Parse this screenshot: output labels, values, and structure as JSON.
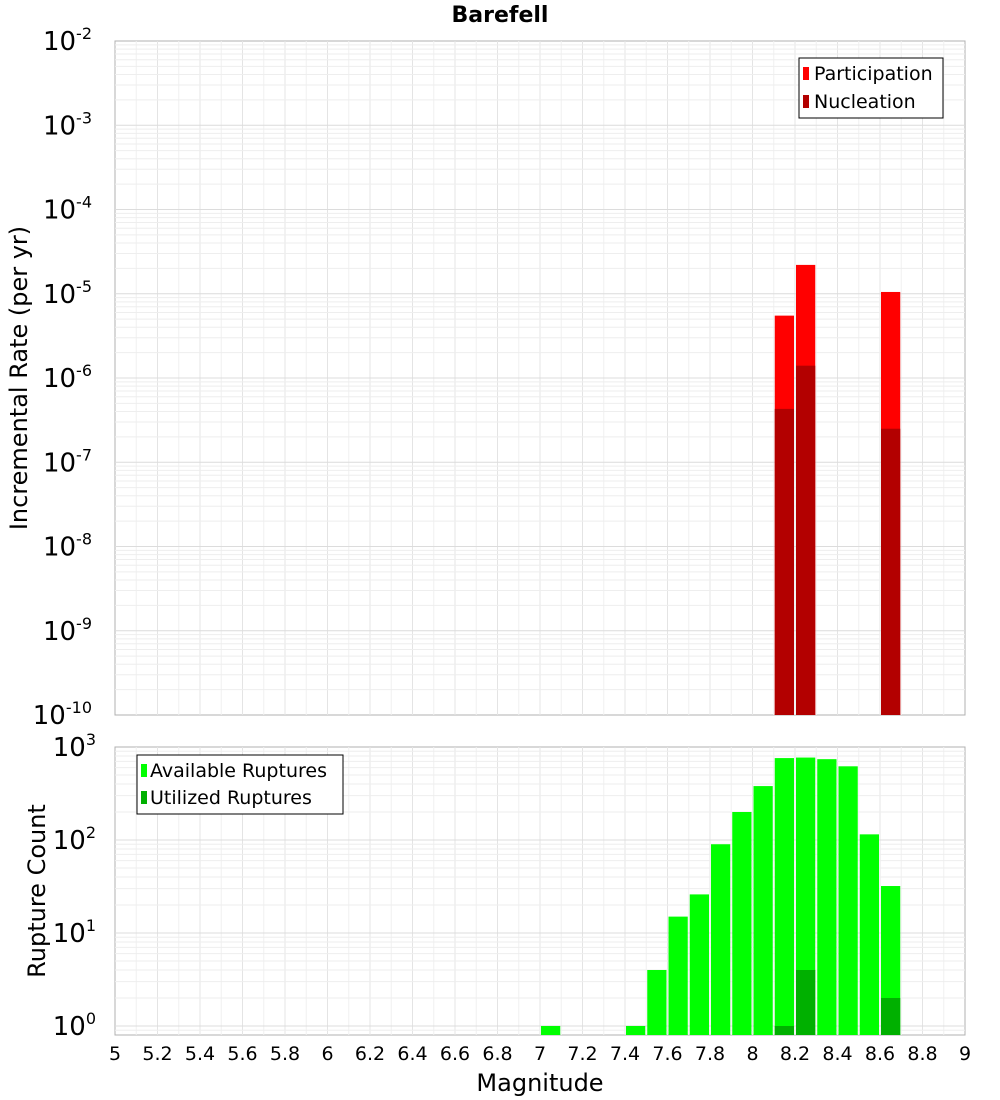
{
  "chart_data": [
    {
      "type": "bar",
      "title": "Barefell",
      "ylabel": "Incremental Rate (per yr)",
      "yscale": "log",
      "ylim": [
        1e-10,
        0.01
      ],
      "ytick_exponents": [
        "-10",
        "-9",
        "-8",
        "-7",
        "-6",
        "-5",
        "-4",
        "-3",
        "-2"
      ],
      "xlim": [
        5,
        9
      ],
      "bar_width": 0.1,
      "grid": true,
      "legend_position": "top-right",
      "series": [
        {
          "name": "Participation",
          "color": "#ff0000",
          "x": [
            8.15,
            8.25,
            8.65
          ],
          "values": [
            5.5e-06,
            2.2e-05,
            1.05e-05
          ]
        },
        {
          "name": "Nucleation",
          "color": "#b30000",
          "x": [
            8.15,
            8.25,
            8.65
          ],
          "values": [
            4.3e-07,
            1.4e-06,
            2.5e-07
          ]
        }
      ]
    },
    {
      "type": "bar",
      "ylabel": "Rupture Count",
      "xlabel": "Magnitude",
      "yscale": "log",
      "ylim": [
        0.8,
        1000
      ],
      "ytick_exponents": [
        "0",
        "1",
        "2",
        "3"
      ],
      "xlim": [
        5,
        9
      ],
      "xticks": [
        "5",
        "5.2",
        "5.4",
        "5.6",
        "5.8",
        "6",
        "6.2",
        "6.4",
        "6.6",
        "6.8",
        "7",
        "7.2",
        "7.4",
        "7.6",
        "7.8",
        "8",
        "8.2",
        "8.4",
        "8.6",
        "8.8",
        "9"
      ],
      "bar_width": 0.1,
      "grid": true,
      "legend_position": "top-left",
      "series": [
        {
          "name": "Available Ruptures",
          "color": "#00ff00",
          "x": [
            7.05,
            7.45,
            7.55,
            7.65,
            7.75,
            7.85,
            7.95,
            8.05,
            8.15,
            8.25,
            8.35,
            8.45,
            8.55,
            8.65
          ],
          "values": [
            1,
            1,
            4,
            15,
            26,
            90,
            200,
            380,
            760,
            770,
            740,
            620,
            115,
            32
          ]
        },
        {
          "name": "Utilized Ruptures",
          "color": "#00b000",
          "x": [
            8.15,
            8.25,
            8.65
          ],
          "values": [
            1,
            4,
            2
          ]
        }
      ]
    }
  ]
}
